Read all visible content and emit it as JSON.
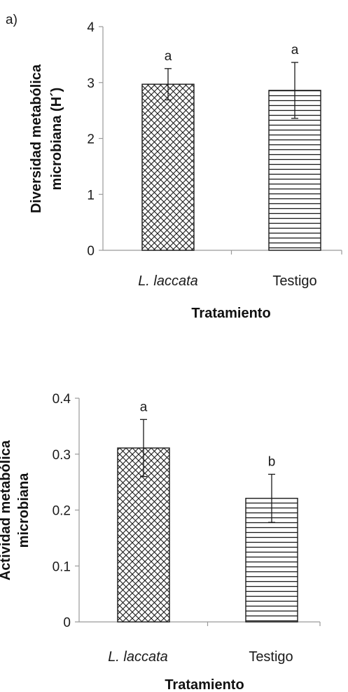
{
  "chart_data": [
    {
      "type": "bar",
      "panel_label": "a)",
      "categories": [
        "L. laccata",
        "Testigo"
      ],
      "category_italic": [
        true,
        false
      ],
      "values": [
        2.97,
        2.86
      ],
      "error": [
        0.28,
        0.5
      ],
      "significance": [
        "a",
        "a"
      ],
      "patterns": [
        "crosshatch",
        "horizontal-lines"
      ],
      "xlabel": "Tratamiento",
      "ylabel_lines": [
        "Diversidad metabólica",
        "microbiana (H´)"
      ],
      "ylim": [
        0,
        4
      ],
      "yticks": [
        "0",
        "1",
        "2",
        "3",
        "4"
      ],
      "grid": false,
      "legend": "none"
    },
    {
      "type": "bar",
      "panel_label": "",
      "categories": [
        "L. laccata",
        "Testigo"
      ],
      "category_italic": [
        true,
        false
      ],
      "values": [
        0.311,
        0.221
      ],
      "error": [
        0.051,
        0.043
      ],
      "significance": [
        "a",
        "b"
      ],
      "patterns": [
        "crosshatch",
        "horizontal-lines"
      ],
      "xlabel": "Tratamiento",
      "ylabel_lines": [
        "Actividad metabólica",
        "microbiana"
      ],
      "ylim": [
        0,
        0.4
      ],
      "yticks": [
        "0",
        "0.1",
        "0.2",
        "0.3",
        "0.4"
      ],
      "grid": false,
      "legend": "none"
    }
  ],
  "colors": {
    "ink": "#1a1a1a",
    "bar_fill": "#ffffff"
  }
}
